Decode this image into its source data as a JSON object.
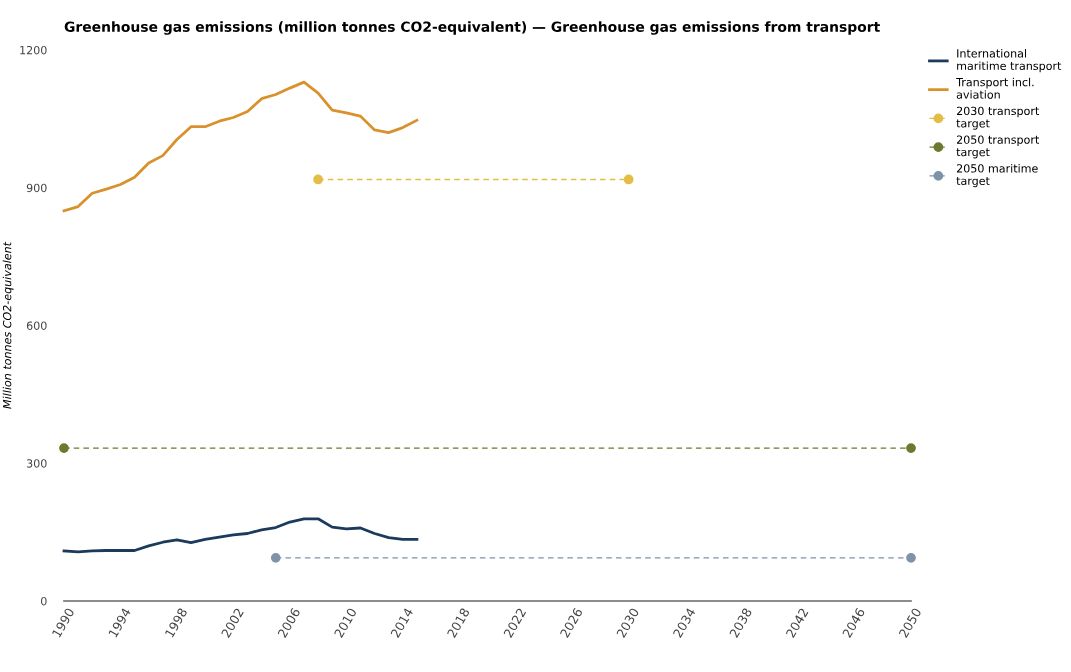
{
  "chart_data": {
    "type": "line",
    "title": "Greenhouse gas emissions (million tonnes CO2-equivalent) — Greenhouse gas emissions from transport",
    "ylabel": "Million tonnes CO2-equivalent",
    "xlim": [
      1990,
      2050
    ],
    "xticks": [
      1990,
      1994,
      1998,
      2002,
      2006,
      2010,
      2014,
      2018,
      2022,
      2026,
      2030,
      2034,
      2038,
      2042,
      2046,
      2050
    ],
    "ylim": [
      0,
      1200
    ],
    "yticks": [
      0,
      300,
      600,
      900,
      1200
    ],
    "grid": false,
    "legend": "right",
    "series": [
      {
        "name": "International maritime transport",
        "color": "#1b3a5c",
        "marker": "none",
        "line_style": "solid",
        "x": [
          1990,
          1991,
          1992,
          1993,
          1994,
          1995,
          1996,
          1997,
          1998,
          1999,
          2000,
          2001,
          2002,
          2003,
          2004,
          2005,
          2006,
          2007,
          2008,
          2009,
          2010,
          2011,
          2012,
          2013,
          2014,
          2015
        ],
        "values": [
          109,
          107,
          109,
          110,
          110,
          110,
          120,
          128,
          133,
          127,
          134,
          139,
          144,
          147,
          155,
          160,
          172,
          179,
          179,
          161,
          157,
          159,
          147,
          138,
          134,
          134
        ]
      },
      {
        "name": "Transport incl. aviation",
        "color": "#d9912e",
        "marker": "none",
        "line_style": "solid",
        "x": [
          1990,
          1991,
          1992,
          1993,
          1994,
          1995,
          1996,
          1997,
          1998,
          1999,
          2000,
          2001,
          2002,
          2003,
          2004,
          2005,
          2006,
          2007,
          2008,
          2009,
          2010,
          2011,
          2012,
          2013,
          2014,
          2015
        ],
        "values": [
          850,
          859,
          888,
          897,
          907,
          923,
          954,
          970,
          1005,
          1033,
          1033,
          1045,
          1053,
          1066,
          1094,
          1103,
          1117,
          1130,
          1106,
          1069,
          1063,
          1056,
          1026,
          1020,
          1031,
          1047
        ]
      },
      {
        "name": "2030 transport target",
        "color": "#e3bd45",
        "marker": "circle",
        "line_style": "dashed",
        "x": [
          2008,
          2030
        ],
        "values": [
          918,
          918
        ]
      },
      {
        "name": "2050 transport target",
        "color": "#6b7a2e",
        "marker": "circle",
        "line_style": "dashed",
        "x": [
          1990,
          2050
        ],
        "values": [
          333,
          333
        ]
      },
      {
        "name": "2050 maritime target",
        "color": "#7f93a8",
        "marker": "circle",
        "line_style": "dashed",
        "x": [
          2005,
          2050
        ],
        "values": [
          94,
          94
        ]
      }
    ]
  }
}
